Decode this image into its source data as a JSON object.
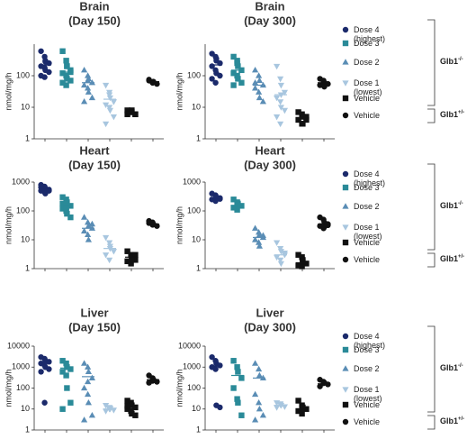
{
  "chart_data": [
    {
      "type": "scatter",
      "title": "Brain",
      "subtitle": "(Day 150)",
      "y_label": "nmol/mg/h",
      "y_scale": "log",
      "ylim": [
        1,
        1000
      ],
      "yticks": [
        1,
        10,
        100
      ],
      "series": [
        {
          "color": "#1b2a6b",
          "marker": "circle",
          "values": [
            600,
            400,
            300,
            250,
            200,
            180,
            150,
            130,
            100,
            90,
            280
          ],
          "mean": 220
        },
        {
          "color": "#2a8a98",
          "marker": "square",
          "values": [
            600,
            300,
            200,
            150,
            120,
            100,
            80,
            70,
            60,
            50,
            200,
            130
          ],
          "mean": 130
        },
        {
          "color": "#5a8db5",
          "marker": "triangle-up",
          "values": [
            150,
            100,
            80,
            60,
            50,
            40,
            30,
            20,
            15,
            70
          ],
          "mean": 60
        },
        {
          "color": "#a8c6df",
          "marker": "triangle-down",
          "values": [
            50,
            30,
            20,
            15,
            12,
            10,
            8,
            5,
            3,
            25
          ],
          "mean": 18
        },
        {
          "color": "#111111",
          "marker": "square",
          "values": [
            8,
            7,
            7,
            6,
            6,
            7,
            8,
            6
          ],
          "mean": 7
        },
        {
          "color": "#111111",
          "marker": "circle",
          "values": [
            70,
            60,
            65,
            55,
            75,
            60
          ],
          "mean": 65
        }
      ]
    },
    {
      "type": "scatter",
      "title": "Brain",
      "subtitle": "(Day 300)",
      "y_label": "nmol/mg/h",
      "y_scale": "log",
      "ylim": [
        1,
        1000
      ],
      "yticks": [
        1,
        10,
        100
      ],
      "series": [
        {
          "name": "Dose 4 (highest)",
          "color": "#1b2a6b",
          "marker": "circle",
          "values": [
            500,
            400,
            300,
            250,
            200,
            150,
            120,
            100,
            80,
            60,
            350
          ],
          "mean": 220
        },
        {
          "name": "Dose 3",
          "color": "#2a8a98",
          "marker": "square",
          "values": [
            400,
            300,
            200,
            150,
            120,
            100,
            80,
            60,
            50,
            250
          ],
          "mean": 150
        },
        {
          "name": "Dose 2",
          "color": "#5a8db5",
          "marker": "triangle-up",
          "values": [
            150,
            100,
            70,
            50,
            40,
            30,
            20,
            15,
            60
          ],
          "mean": 50
        },
        {
          "name": "Dose 1 (lowest)",
          "color": "#a8c6df",
          "marker": "triangle-down",
          "values": [
            200,
            80,
            50,
            30,
            20,
            15,
            10,
            8,
            5,
            3,
            25
          ],
          "mean": 25
        },
        {
          "name": "Vehicle",
          "color": "#111111",
          "marker": "square",
          "values": [
            7,
            6,
            5,
            4,
            4,
            3,
            3,
            5
          ],
          "mean": 4.5
        },
        {
          "name": "Vehicle",
          "color": "#111111",
          "marker": "circle",
          "values": [
            80,
            70,
            60,
            55,
            50,
            65,
            45
          ],
          "mean": 60
        }
      ],
      "genotypes": [
        {
          "label": "Glb1",
          "sup": "-/-"
        },
        {
          "label": "Glb1",
          "sup": "+/-"
        }
      ]
    },
    {
      "type": "scatter",
      "title": "Heart",
      "subtitle": "(Day 150)",
      "y_label": "nmol/mg/h",
      "y_scale": "log",
      "ylim": [
        1,
        1000
      ],
      "yticks": [
        1,
        10,
        100,
        1000
      ],
      "series": [
        {
          "color": "#1b2a6b",
          "marker": "circle",
          "values": [
            800,
            700,
            600,
            550,
            500,
            450,
            400,
            500,
            650
          ],
          "mean": 550
        },
        {
          "color": "#2a8a98",
          "marker": "square",
          "values": [
            300,
            250,
            200,
            150,
            120,
            100,
            80,
            60,
            180,
            130
          ],
          "mean": 150
        },
        {
          "color": "#5a8db5",
          "marker": "triangle-up",
          "values": [
            60,
            40,
            30,
            25,
            20,
            15,
            10,
            35
          ],
          "mean": 25
        },
        {
          "color": "#a8c6df",
          "marker": "triangle-down",
          "values": [
            12,
            8,
            6,
            4,
            3,
            2,
            5
          ],
          "mean": 5
        },
        {
          "color": "#111111",
          "marker": "square",
          "values": [
            4,
            3,
            2.5,
            2,
            1.8,
            1.5,
            2.2,
            3
          ],
          "mean": 2.5
        },
        {
          "color": "#111111",
          "marker": "circle",
          "values": [
            45,
            40,
            35,
            30,
            38,
            33
          ],
          "mean": 35
        }
      ]
    },
    {
      "type": "scatter",
      "title": "Heart",
      "subtitle": "(Day 300)",
      "y_label": "nmol/mg/h",
      "y_scale": "log",
      "ylim": [
        1,
        1000
      ],
      "yticks": [
        1,
        10,
        100,
        1000
      ],
      "series": [
        {
          "name": "Dose 4 (highest)",
          "color": "#1b2a6b",
          "marker": "circle",
          "values": [
            400,
            350,
            300,
            280,
            250,
            220,
            300,
            260
          ],
          "mean": 280
        },
        {
          "name": "Dose 3",
          "color": "#2a8a98",
          "marker": "square",
          "values": [
            250,
            200,
            180,
            150,
            130,
            110,
            160
          ],
          "mean": 150
        },
        {
          "name": "Dose 2",
          "color": "#5a8db5",
          "marker": "triangle-up",
          "values": [
            25,
            18,
            15,
            12,
            10,
            8,
            6,
            14
          ],
          "mean": 12
        },
        {
          "name": "Dose 1 (lowest)",
          "color": "#a8c6df",
          "marker": "triangle-down",
          "values": [
            8,
            5,
            4,
            3,
            2.5,
            2,
            1.5,
            3.5
          ],
          "mean": 3
        },
        {
          "name": "Vehicle",
          "color": "#111111",
          "marker": "square",
          "values": [
            3,
            2.5,
            2,
            1.5,
            1.3,
            1.2,
            1.8
          ],
          "mean": 1.6
        },
        {
          "name": "Vehicle",
          "color": "#111111",
          "marker": "circle",
          "values": [
            60,
            50,
            40,
            35,
            30,
            25,
            28,
            32
          ],
          "mean": 35
        }
      ],
      "genotypes": [
        {
          "label": "Glb1",
          "sup": "-/-"
        },
        {
          "label": "Glb1",
          "sup": "+/-"
        }
      ]
    },
    {
      "type": "scatter",
      "title": "Liver",
      "subtitle": "(Day 150)",
      "y_label": "nmol/mg/h",
      "y_scale": "log",
      "ylim": [
        1,
        10000
      ],
      "yticks": [
        1,
        10,
        100,
        1000,
        10000
      ],
      "series": [
        {
          "color": "#1b2a6b",
          "marker": "circle",
          "values": [
            3000,
            2500,
            2000,
            1800,
            1500,
            1200,
            1000,
            800,
            600,
            20
          ],
          "mean": 1700
        },
        {
          "color": "#2a8a98",
          "marker": "square",
          "values": [
            2000,
            1500,
            1000,
            800,
            600,
            400,
            100,
            20,
            10
          ],
          "mean": 900
        },
        {
          "color": "#5a8db5",
          "marker": "triangle-up",
          "values": [
            1500,
            1000,
            600,
            300,
            100,
            50,
            20,
            5,
            3,
            200
          ],
          "mean": 350
        },
        {
          "color": "#a8c6df",
          "marker": "triangle-down",
          "values": [
            15,
            12,
            10,
            9,
            8,
            10,
            11
          ],
          "mean": 10
        },
        {
          "color": "#111111",
          "marker": "square",
          "values": [
            25,
            20,
            15,
            12,
            10,
            8,
            6,
            5,
            14
          ],
          "mean": 12
        },
        {
          "color": "#111111",
          "marker": "circle",
          "values": [
            400,
            300,
            250,
            200,
            180,
            220,
            260
          ],
          "mean": 250
        }
      ]
    },
    {
      "type": "scatter",
      "title": "Liver",
      "subtitle": "(Day 300)",
      "y_label": "nmol/mg/h",
      "y_scale": "log",
      "ylim": [
        1,
        10000
      ],
      "yticks": [
        1,
        10,
        100,
        1000,
        10000
      ],
      "series": [
        {
          "name": "Dose 4 (highest)",
          "color": "#1b2a6b",
          "marker": "circle",
          "values": [
            3000,
            2000,
            1500,
            1200,
            1000,
            800,
            15,
            12
          ],
          "mean": 1100
        },
        {
          "name": "Dose 3",
          "color": "#2a8a98",
          "marker": "square",
          "values": [
            2000,
            1000,
            600,
            300,
            100,
            30,
            20,
            5
          ],
          "mean": 400
        },
        {
          "name": "Dose 2",
          "color": "#5a8db5",
          "marker": "triangle-up",
          "values": [
            1500,
            800,
            400,
            300,
            50,
            20,
            10,
            5,
            3
          ],
          "mean": 300
        },
        {
          "name": "Dose 1 (lowest)",
          "color": "#a8c6df",
          "marker": "triangle-down",
          "values": [
            20,
            18,
            15,
            13,
            12,
            16
          ],
          "mean": 15
        },
        {
          "name": "Vehicle",
          "color": "#111111",
          "marker": "square",
          "values": [
            25,
            15,
            12,
            10,
            8,
            6,
            11
          ],
          "mean": 10
        },
        {
          "name": "Vehicle",
          "color": "#111111",
          "marker": "circle",
          "values": [
            250,
            200,
            180,
            150,
            120,
            170
          ],
          "mean": 160
        }
      ],
      "genotypes": [
        {
          "label": "Glb1",
          "sup": "-/-"
        },
        {
          "label": "Glb1",
          "sup": "+/-"
        }
      ]
    }
  ]
}
